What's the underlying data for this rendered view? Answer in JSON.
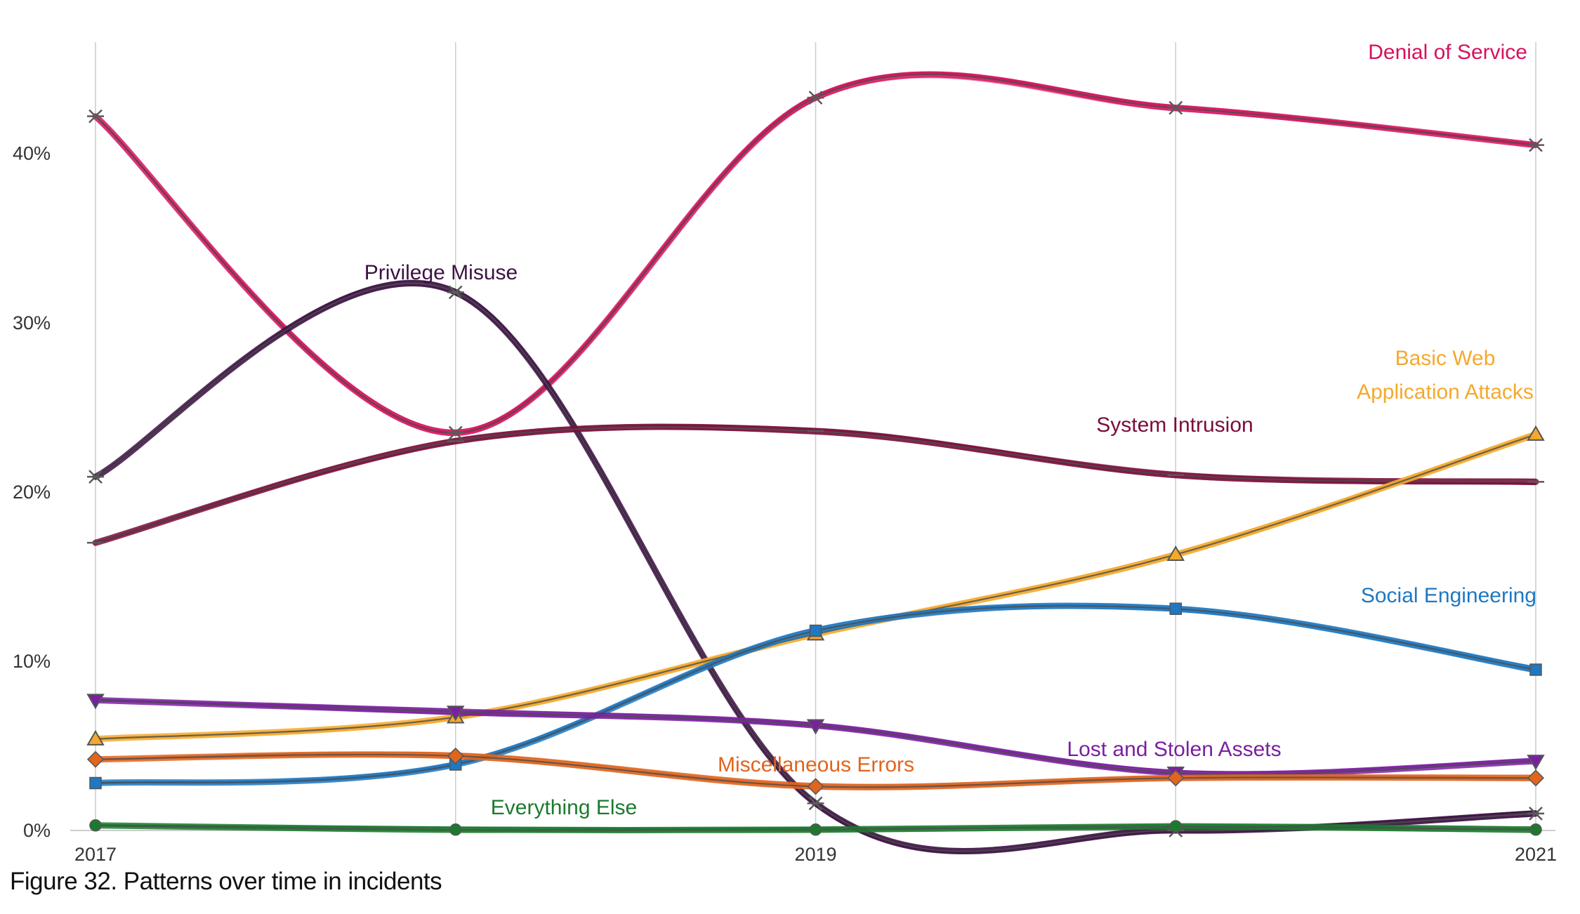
{
  "caption": "Figure 32. Patterns over time in incidents",
  "chart_data": {
    "type": "line",
    "title": "",
    "xlabel": "",
    "ylabel": "",
    "x": [
      2017,
      2018,
      2019,
      2020,
      2021
    ],
    "x_tick_labels": [
      "2017",
      "",
      "2019",
      "",
      "2021"
    ],
    "y_tick_labels": [
      "0%",
      "10%",
      "20%",
      "30%",
      "40%"
    ],
    "y_ticks": [
      0,
      10,
      20,
      30,
      40
    ],
    "ylim": [
      0,
      46.5
    ],
    "y_unit": "%",
    "grid": "vertical",
    "legend": "direct labels",
    "series": [
      {
        "name": "Denial of Service",
        "color": "#d6125e",
        "marker": "star",
        "values": [
          42.2,
          23.5,
          43.3,
          42.7,
          40.5
        ]
      },
      {
        "name": "Privilege Misuse",
        "color": "#3d1244",
        "marker": "star",
        "values": [
          20.9,
          31.8,
          1.6,
          0.0,
          1.0
        ]
      },
      {
        "name": "System Intrusion",
        "color": "#7a0d3a",
        "marker": "dash",
        "values": [
          17.0,
          23.0,
          23.6,
          21.0,
          20.6
        ]
      },
      {
        "name": "Basic Web Application Attacks",
        "color": "#f4a92d",
        "marker": "triangle",
        "values": [
          5.4,
          6.7,
          11.6,
          16.3,
          23.4
        ]
      },
      {
        "name": "Social Engineering",
        "color": "#1f78c1",
        "marker": "square",
        "values": [
          2.8,
          3.9,
          11.8,
          13.1,
          9.5
        ]
      },
      {
        "name": "Lost and Stolen Assets",
        "color": "#7b1fa2",
        "marker": "triangle-down",
        "values": [
          7.7,
          7.0,
          6.2,
          3.4,
          4.1
        ]
      },
      {
        "name": "Miscellaneous Errors",
        "color": "#e0651e",
        "marker": "diamond",
        "values": [
          4.2,
          4.4,
          2.6,
          3.1,
          3.1
        ]
      },
      {
        "name": "Everything Else",
        "color": "#1b7a2e",
        "marker": "circle",
        "values": [
          0.3,
          0.05,
          0.05,
          0.25,
          0.05
        ]
      }
    ],
    "series_labels": [
      {
        "lines": [
          "Denial of Service"
        ],
        "color": "#d6125e"
      },
      {
        "lines": [
          "Privilege Misuse"
        ],
        "color": "#3d1244"
      },
      {
        "lines": [
          "System Intrusion"
        ],
        "color": "#7a0d3a"
      },
      {
        "lines": [
          "Basic Web",
          "Application Attacks"
        ],
        "color": "#f4a92d"
      },
      {
        "lines": [
          "Social Engineering"
        ],
        "color": "#1f78c1"
      },
      {
        "lines": [
          "Lost and Stolen Assets"
        ],
        "color": "#7b1fa2"
      },
      {
        "lines": [
          "Miscellaneous Errors"
        ],
        "color": "#e0651e"
      },
      {
        "lines": [
          "Everything Else"
        ],
        "color": "#1b7a2e"
      }
    ]
  }
}
